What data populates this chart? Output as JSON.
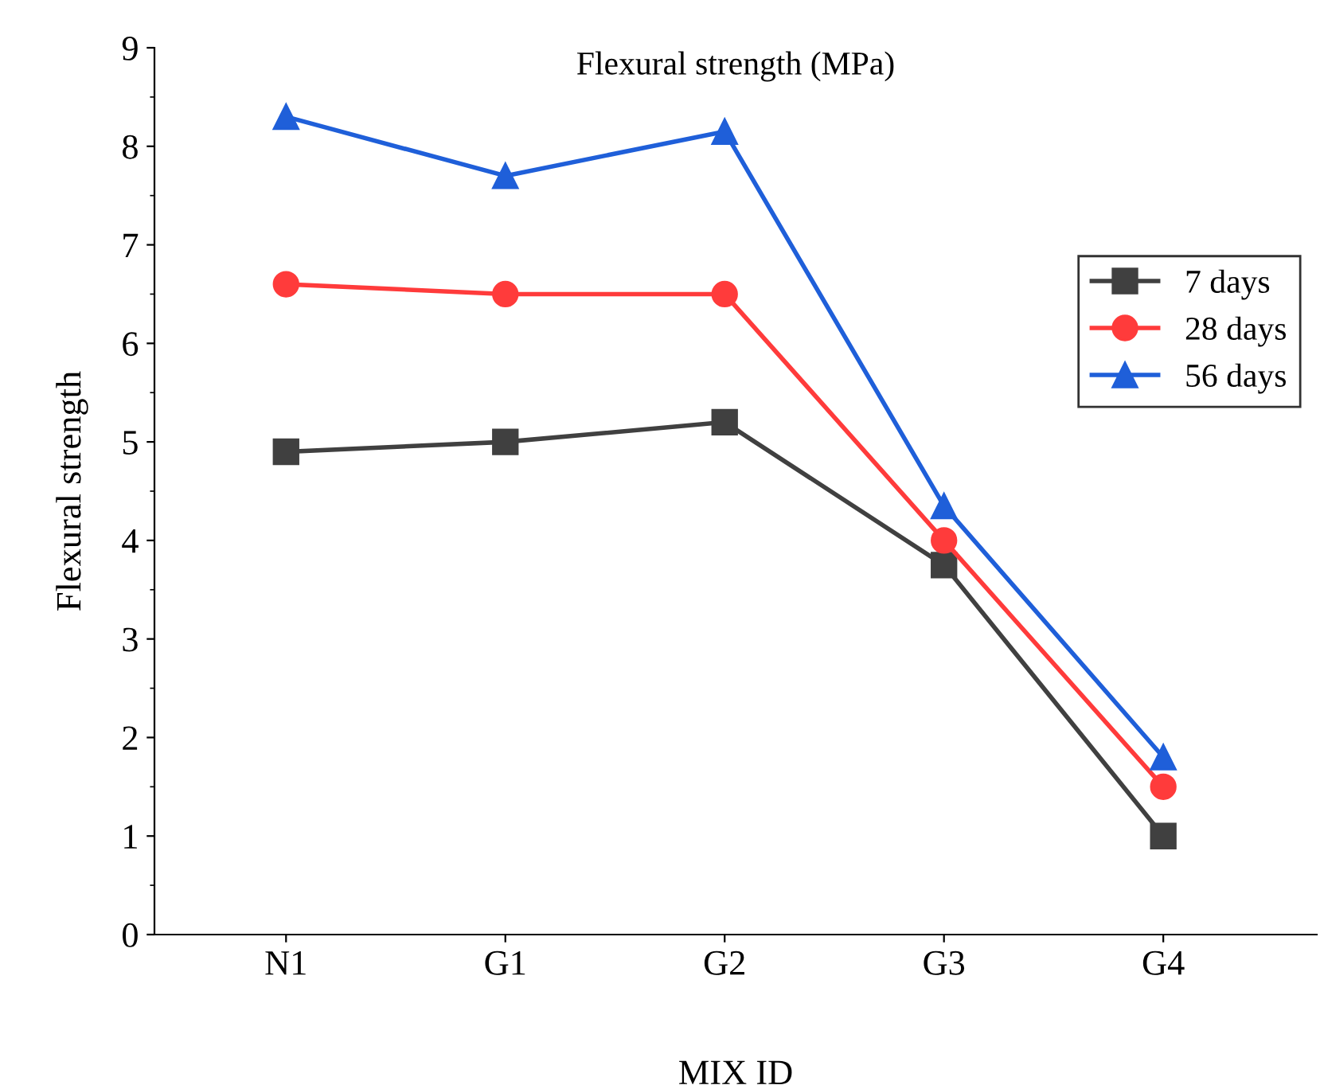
{
  "chart_data": {
    "type": "line",
    "title": "Flexural strength (MPa)",
    "xlabel": "MIX ID",
    "ylabel": "Flexural strength",
    "categories": [
      "N1",
      "G1",
      "G2",
      "G3",
      "G4"
    ],
    "series": [
      {
        "name": "7 days",
        "color": "#404040",
        "marker": "square",
        "values": [
          4.9,
          5.0,
          5.2,
          3.75,
          1.0
        ]
      },
      {
        "name": "28 days",
        "color": "#ff3b3b",
        "marker": "circle",
        "values": [
          6.6,
          6.5,
          6.5,
          4.0,
          1.5
        ]
      },
      {
        "name": "56 days",
        "color": "#1f5fd9",
        "marker": "triangle",
        "values": [
          8.3,
          7.7,
          8.15,
          4.35,
          1.8
        ]
      }
    ],
    "ylim": [
      0,
      9
    ],
    "yticks": [
      0,
      1,
      2,
      3,
      4,
      5,
      6,
      7,
      8,
      9
    ],
    "grid": false,
    "legend": "right",
    "line_style": "solid"
  }
}
